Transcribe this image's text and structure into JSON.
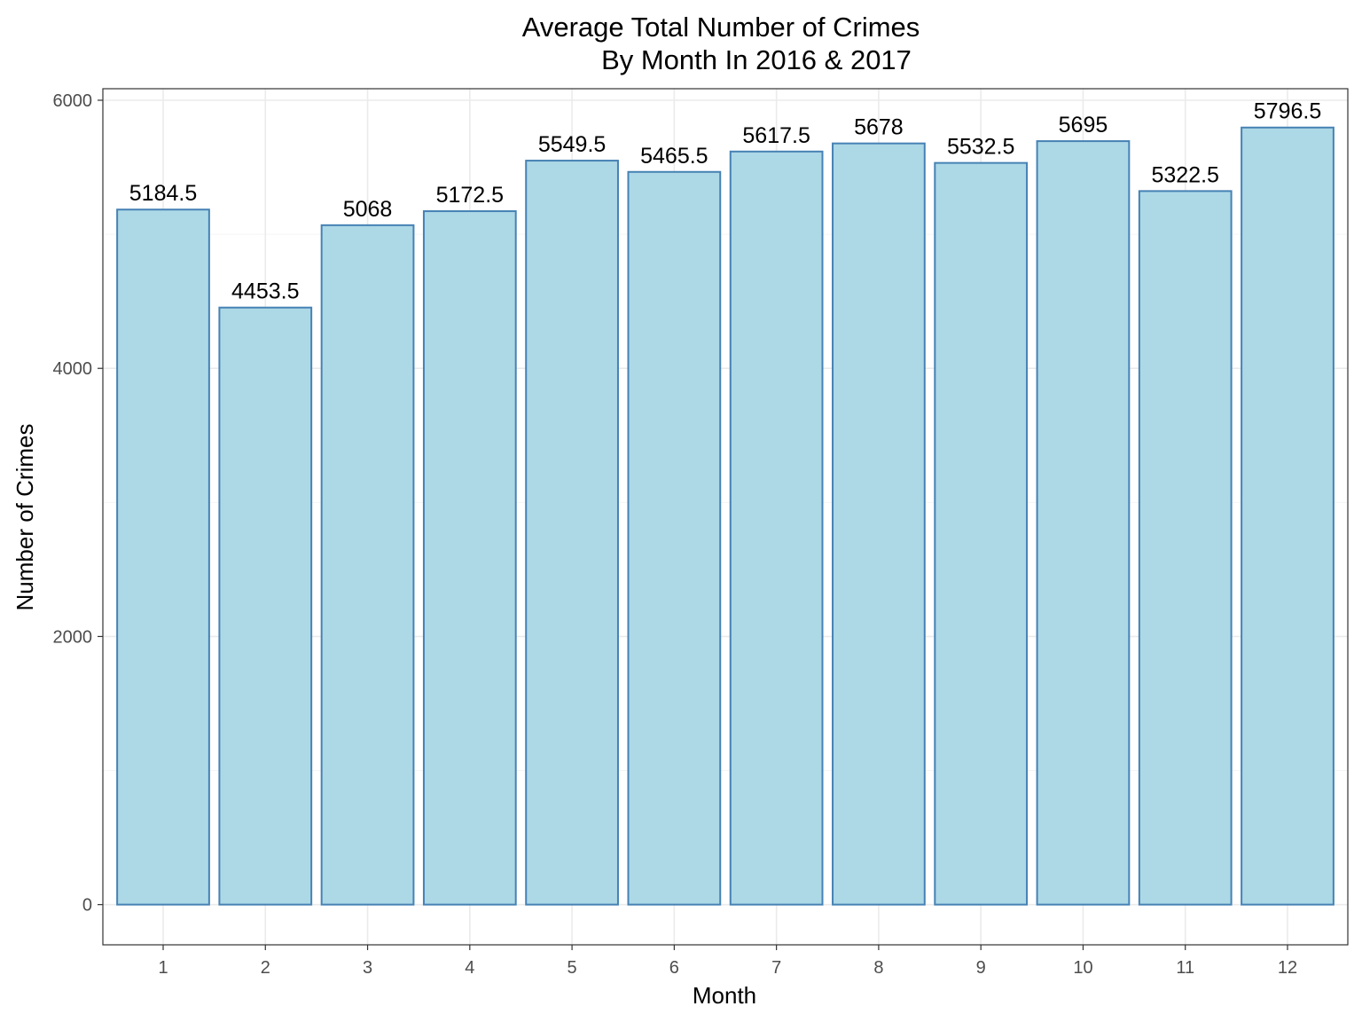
{
  "chart_data": {
    "type": "bar",
    "title_line1": "Average Total Number of Crimes",
    "title_line2": "By Month In 2016 & 2017",
    "xlabel": "Month",
    "ylabel": "Number of Crimes",
    "categories": [
      "1",
      "2",
      "3",
      "4",
      "5",
      "6",
      "7",
      "8",
      "9",
      "10",
      "11",
      "12"
    ],
    "values": [
      5184.5,
      4453.5,
      5068,
      5172.5,
      5549.5,
      5465.5,
      5617.5,
      5678,
      5532.5,
      5695,
      5322.5,
      5796.5
    ],
    "value_labels": [
      "5184.5",
      "4453.5",
      "5068",
      "5172.5",
      "5549.5",
      "5465.5",
      "5617.5",
      "5678",
      "5532.5",
      "5695",
      "5322.5",
      "5796.5"
    ],
    "yticks": [
      0,
      2000,
      4000,
      6000
    ],
    "ytick_labels": [
      "0",
      "2000",
      "4000",
      "6000"
    ],
    "ylim": [
      -300,
      6086
    ],
    "grid": true,
    "legend": "none",
    "colors": {
      "bar_fill": "#add8e6",
      "bar_stroke": "#4682b4",
      "grid_major": "#ebebeb",
      "grid_minor": "#f5f5f5",
      "panel_border": "#333333"
    }
  }
}
